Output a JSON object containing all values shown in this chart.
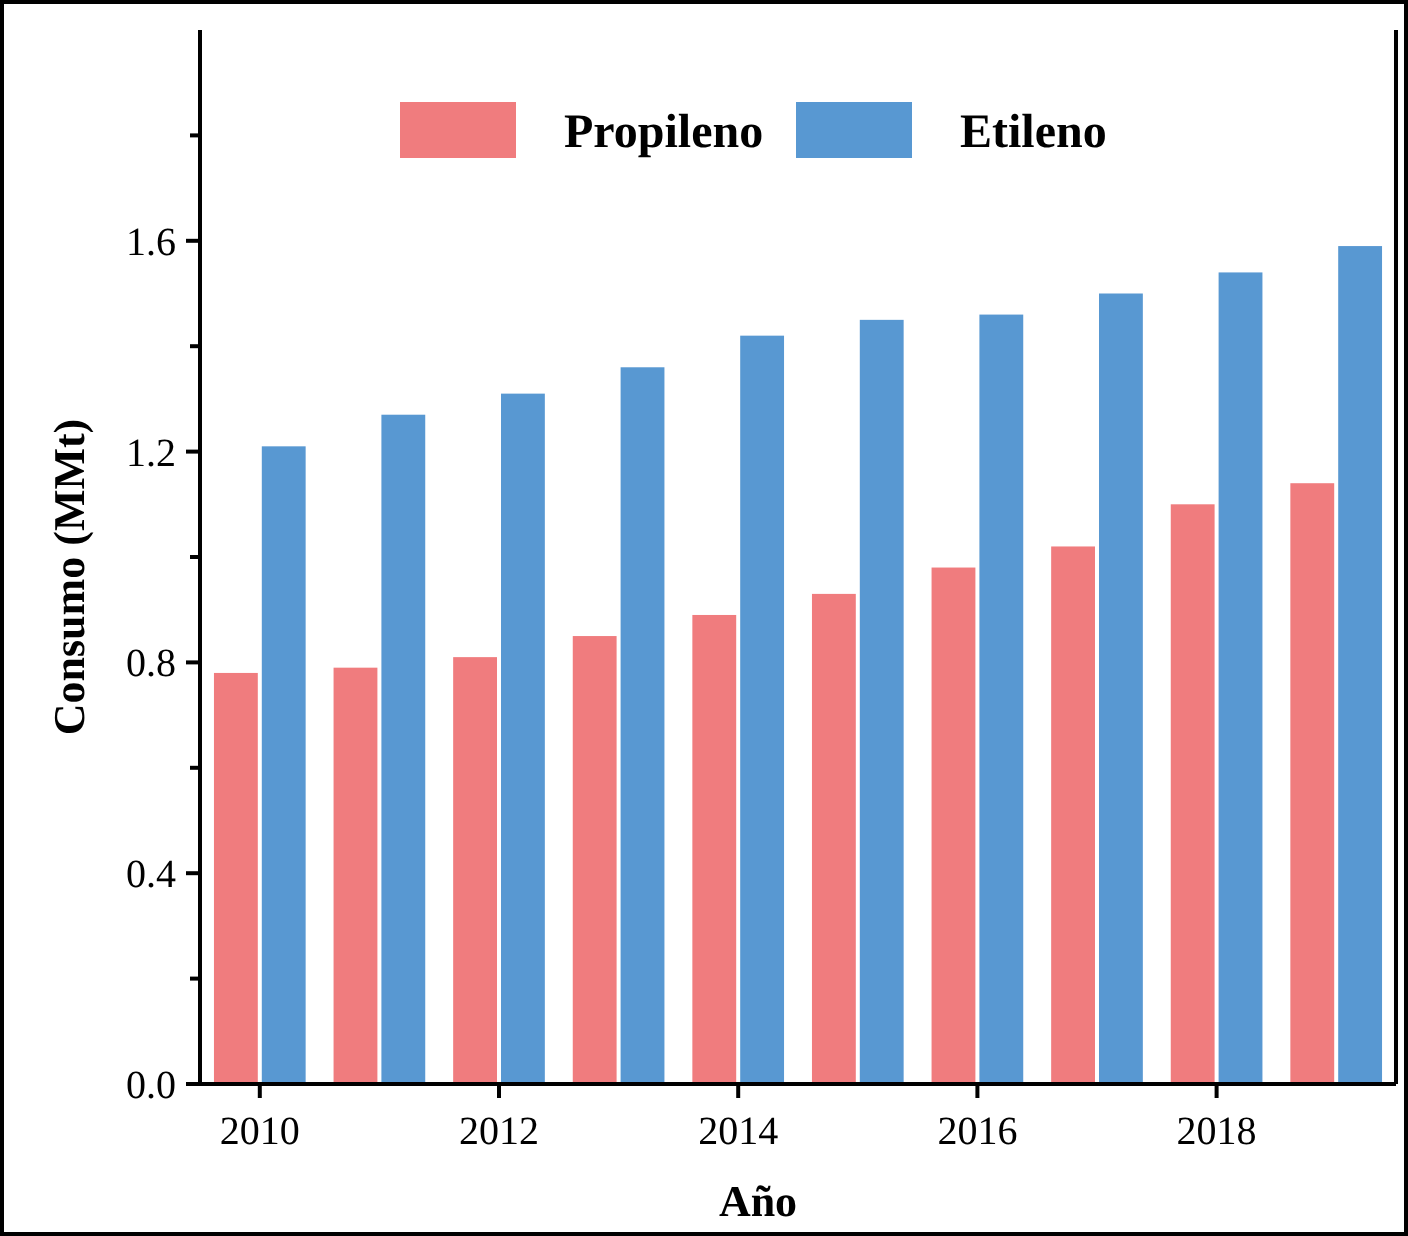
{
  "chart_data": {
    "type": "bar",
    "xlabel": "Año",
    "ylabel": "Consumo (MMt)",
    "categories": [
      "2010",
      null,
      "2012",
      null,
      "2014",
      null,
      "2016",
      null,
      "2018",
      null
    ],
    "series": [
      {
        "name": "Propileno",
        "color": "#f07c7e",
        "values": [
          0.78,
          0.79,
          0.81,
          0.85,
          0.89,
          0.93,
          0.98,
          1.02,
          1.1,
          1.14
        ]
      },
      {
        "name": "Etileno",
        "color": "#5898d2",
        "values": [
          1.21,
          1.27,
          1.31,
          1.36,
          1.42,
          1.45,
          1.46,
          1.5,
          1.54,
          1.59
        ]
      }
    ],
    "ylim": [
      0,
      2.0
    ],
    "yticks": [
      {
        "value": 0,
        "label": "0.0"
      },
      {
        "value": 0.2,
        "label": null
      },
      0.4,
      {
        "value": 0.6,
        "label": null
      },
      0.8,
      {
        "value": 1.0,
        "label": null
      },
      1.2,
      {
        "value": 1.4,
        "label": null
      },
      1.6,
      {
        "value": 1.8,
        "label": null
      }
    ],
    "grid": false,
    "legend": "top"
  }
}
